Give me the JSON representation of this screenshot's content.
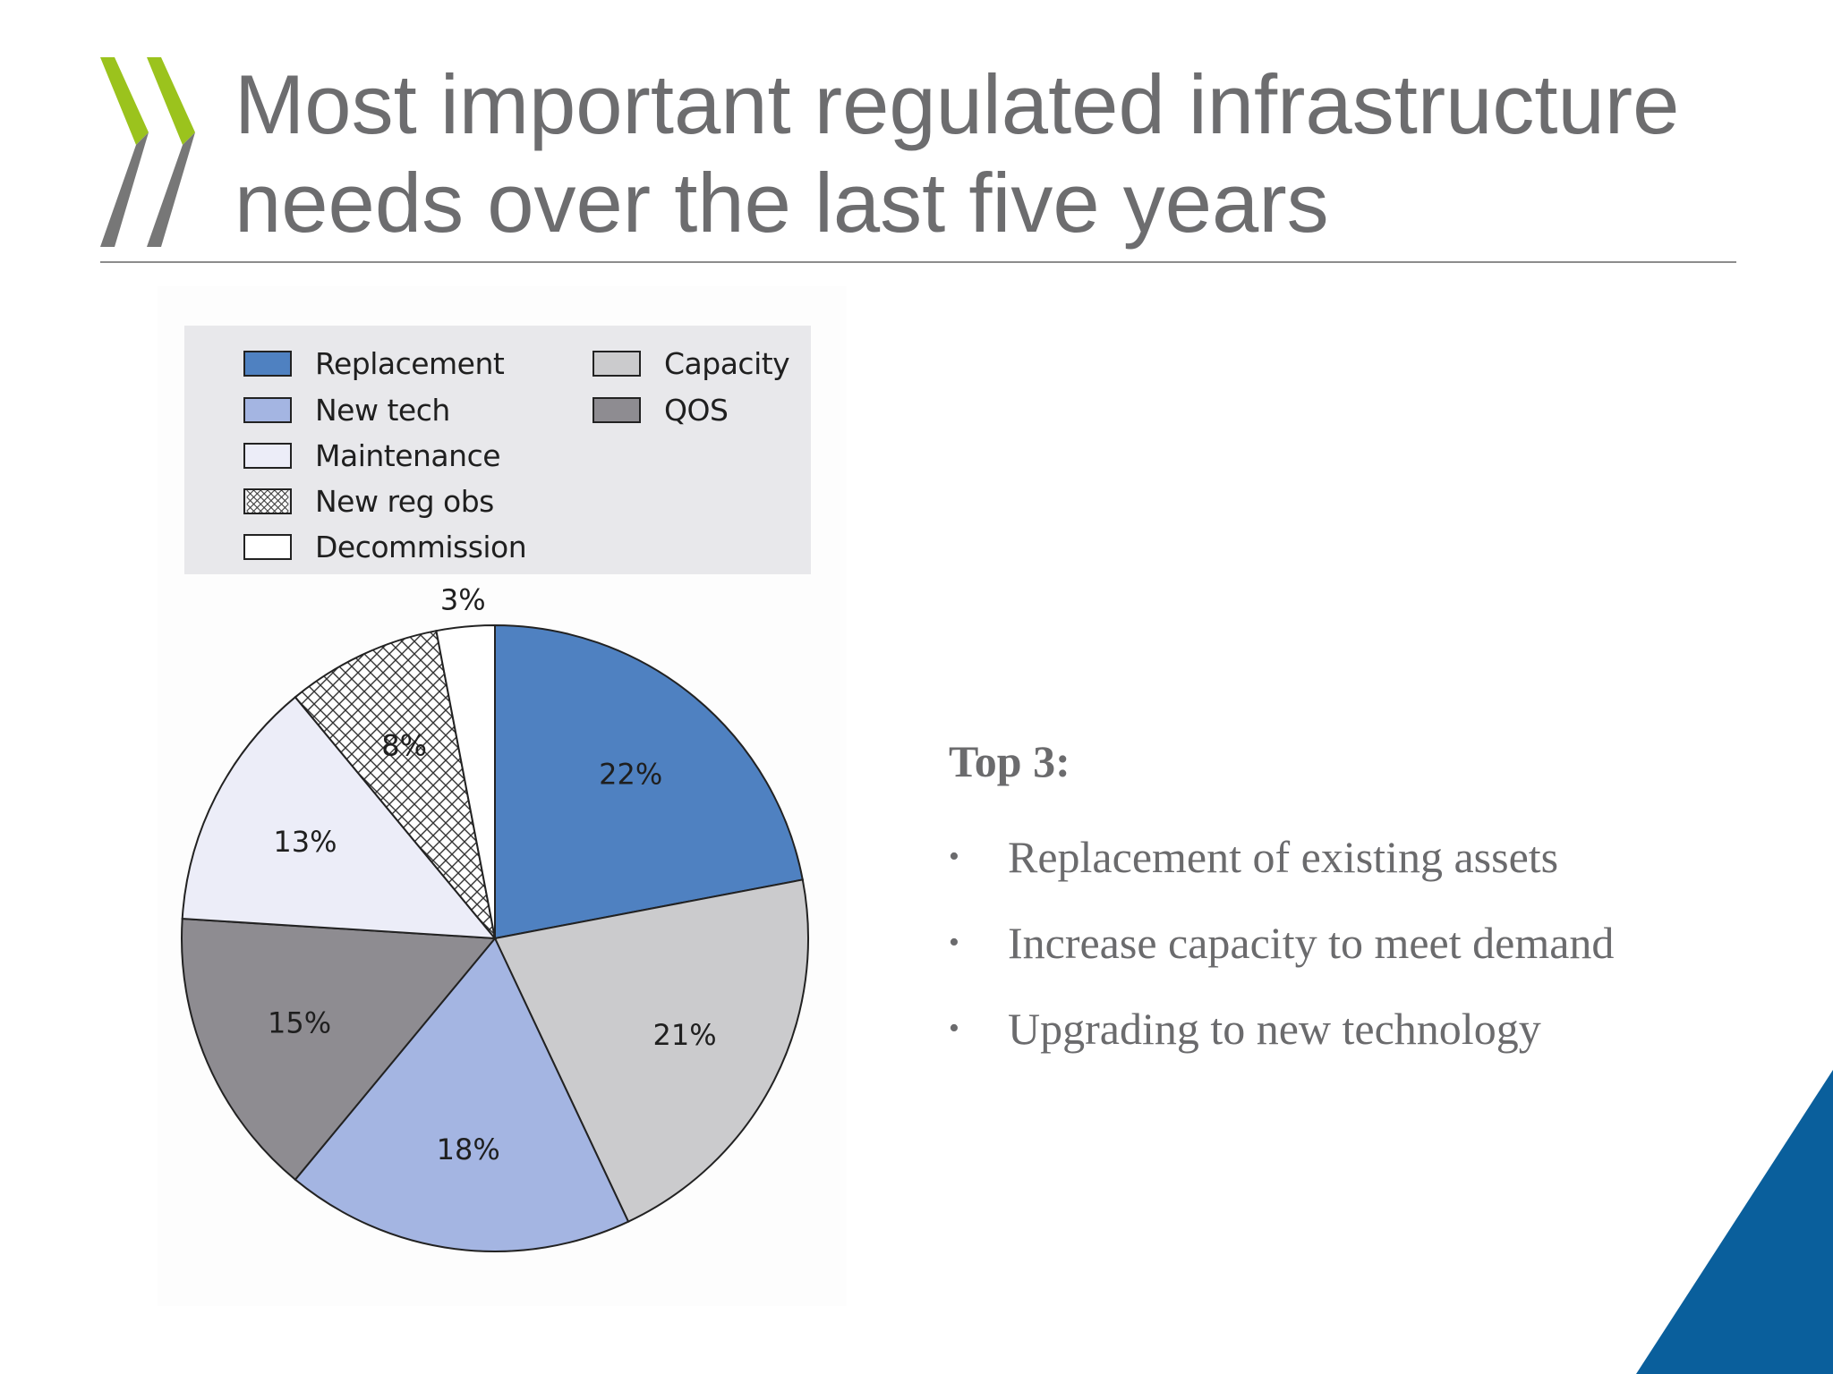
{
  "slide": {
    "title_line1": "Most important regulated infrastructure",
    "title_line2": "needs over the last five years",
    "colors": {
      "title": "#6d6d6f",
      "logo_green": "#9bc31d",
      "logo_grey": "#777777",
      "corner_blue": "#0a5f9c"
    }
  },
  "chart_data": {
    "type": "pie",
    "title": "",
    "legend_position": "top",
    "slices": [
      {
        "label": "Replacement",
        "value": 22,
        "value_label": "22%",
        "color": "#4f81c1",
        "pattern": "solid"
      },
      {
        "label": "Capacity",
        "value": 21,
        "value_label": "21%",
        "color": "#cbcbcd",
        "pattern": "solid"
      },
      {
        "label": "New tech",
        "value": 18,
        "value_label": "18%",
        "color": "#a4b5e2",
        "pattern": "solid"
      },
      {
        "label": "QOS",
        "value": 15,
        "value_label": "15%",
        "color": "#8e8c91",
        "pattern": "solid"
      },
      {
        "label": "Maintenance",
        "value": 13,
        "value_label": "13%",
        "color": "#ecedf8",
        "pattern": "solid"
      },
      {
        "label": "New reg obs",
        "value": 8,
        "value_label": "8%",
        "color": "#ffffff",
        "pattern": "crosshatch"
      },
      {
        "label": "Decommission",
        "value": 3,
        "value_label": "3%",
        "color": "#ffffff",
        "pattern": "solid"
      }
    ]
  },
  "legend": {
    "items": [
      {
        "label": "Replacement"
      },
      {
        "label": "New tech"
      },
      {
        "label": "Maintenance"
      },
      {
        "label": "New reg obs"
      },
      {
        "label": "Decommission"
      },
      {
        "label": "Capacity"
      },
      {
        "label": "QOS"
      }
    ]
  },
  "summary": {
    "heading": "Top 3:",
    "bullet_char": "•",
    "items": [
      "Replacement of existing assets",
      "Increase capacity to meet demand",
      "Upgrading to new technology"
    ]
  }
}
